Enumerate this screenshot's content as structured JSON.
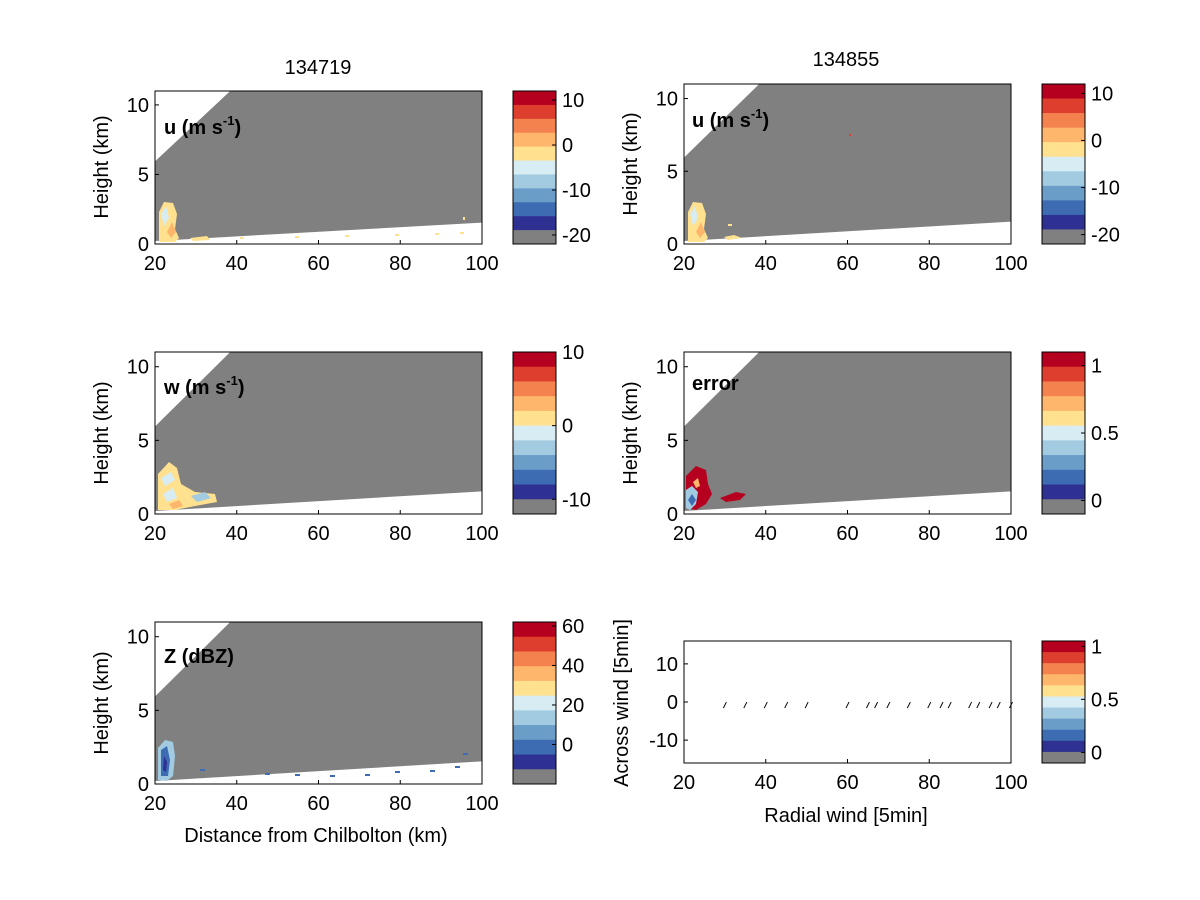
{
  "colors": {
    "gray": "#808080",
    "ramp": [
      "#2f3192",
      "#3d6cb3",
      "#6a9dc8",
      "#a2cbe2",
      "#d7ecf3",
      "#ffe190",
      "#fdb66b",
      "#f3824f",
      "#dd3e2d",
      "#b5001f"
    ]
  },
  "x_ticks": [
    "20",
    "40",
    "60",
    "80",
    "100"
  ],
  "chart_data": [
    {
      "type": "heatmap",
      "id": "p1",
      "title": "134719",
      "label": "u (m s-1)",
      "label_main": "u (m s",
      "label_sup": "-1",
      "label_close": ")",
      "xlabel": "",
      "ylabel": "Height (km)",
      "xlim": [
        20,
        100
      ],
      "ylim": [
        0,
        11
      ],
      "yticks": [
        "0",
        "5",
        "10"
      ],
      "colorbar": {
        "ticks": [
          {
            "v": 10,
            "label": "10"
          },
          {
            "v": 0,
            "label": "0"
          },
          {
            "v": -10,
            "label": "-10"
          },
          {
            "v": -20,
            "label": "-20"
          }
        ],
        "range": [
          -22,
          12
        ]
      },
      "echo": "yellow-left"
    },
    {
      "type": "heatmap",
      "id": "p2",
      "title": "134855",
      "label": "u (m s-1)",
      "label_main": "u (m s",
      "label_sup": "-1",
      "label_close": ")",
      "xlabel": "",
      "ylabel": "Height (km)",
      "xlim": [
        20,
        100
      ],
      "ylim": [
        0,
        11
      ],
      "yticks": [
        "0",
        "5",
        "10"
      ],
      "colorbar": {
        "ticks": [
          {
            "v": 10,
            "label": "10"
          },
          {
            "v": 0,
            "label": "0"
          },
          {
            "v": -10,
            "label": "-10"
          },
          {
            "v": -20,
            "label": "-20"
          }
        ],
        "range": [
          -22,
          12
        ]
      },
      "echo": "yellow-right"
    },
    {
      "type": "heatmap",
      "id": "p3",
      "title": "",
      "label": "w (m s-1)",
      "label_main": "w (m s",
      "label_sup": "-1",
      "label_close": ")",
      "xlabel": "",
      "ylabel": "Height (km)",
      "xlim": [
        20,
        100
      ],
      "ylim": [
        0,
        11
      ],
      "yticks": [
        "0",
        "5",
        "10"
      ],
      "colorbar": {
        "ticks": [
          {
            "v": 10,
            "label": "10"
          },
          {
            "v": 0,
            "label": "0"
          },
          {
            "v": -10,
            "label": "-10"
          }
        ],
        "range": [
          -12,
          10
        ]
      },
      "echo": "yellow-w"
    },
    {
      "type": "heatmap",
      "id": "p4",
      "title": "",
      "label": "error",
      "label_main": "error",
      "label_sup": "",
      "label_close": "",
      "xlabel": "",
      "ylabel": "Height (km)",
      "xlim": [
        20,
        100
      ],
      "ylim": [
        0,
        11
      ],
      "yticks": [
        "0",
        "5",
        "10"
      ],
      "colorbar": {
        "ticks": [
          {
            "v": 1,
            "label": "1"
          },
          {
            "v": 0.5,
            "label": "0.5"
          },
          {
            "v": 0,
            "label": "0"
          }
        ],
        "range": [
          -0.1,
          1.1
        ]
      },
      "echo": "red-error"
    },
    {
      "type": "heatmap",
      "id": "p5",
      "title": "",
      "label": "Z (dBZ)",
      "label_main": "Z (dBZ)",
      "label_sup": "",
      "label_close": "",
      "xlabel": "Distance from Chilbolton (km)",
      "ylabel": "Height (km)",
      "xlim": [
        20,
        100
      ],
      "ylim": [
        0,
        11
      ],
      "yticks": [
        "0",
        "5",
        "10"
      ],
      "colorbar": {
        "ticks": [
          {
            "v": 60,
            "label": "60"
          },
          {
            "v": 40,
            "label": "40"
          },
          {
            "v": 20,
            "label": "20"
          },
          {
            "v": 0,
            "label": "0"
          }
        ],
        "range": [
          -20,
          62
        ]
      },
      "echo": "blue-z"
    },
    {
      "type": "scatter",
      "id": "p6",
      "title": "",
      "label": "",
      "xlabel": "Radial wind [5min]",
      "ylabel": "Across wind [5min]",
      "xlim": [
        20,
        100
      ],
      "ylim": [
        -16,
        16
      ],
      "yticks": [
        "-10",
        "0",
        "10"
      ],
      "ytick_values": [
        -10,
        0,
        10
      ],
      "colorbar": {
        "ticks": [
          {
            "v": 1,
            "label": "1"
          },
          {
            "v": 0.5,
            "label": "0.5"
          },
          {
            "v": 0,
            "label": "0"
          }
        ],
        "range": [
          -0.1,
          1.05
        ]
      },
      "x": [
        30,
        35,
        40,
        45,
        50,
        60,
        65,
        67,
        70,
        75,
        80,
        83,
        85,
        90,
        92,
        95,
        97,
        100
      ],
      "y": [
        -0.8,
        -0.8,
        -0.8,
        -0.8,
        -0.8,
        -0.8,
        -0.8,
        -0.8,
        -0.8,
        -0.8,
        -0.8,
        -0.8,
        -0.8,
        -0.8,
        -0.8,
        -0.8,
        -0.8,
        -0.8
      ]
    }
  ]
}
